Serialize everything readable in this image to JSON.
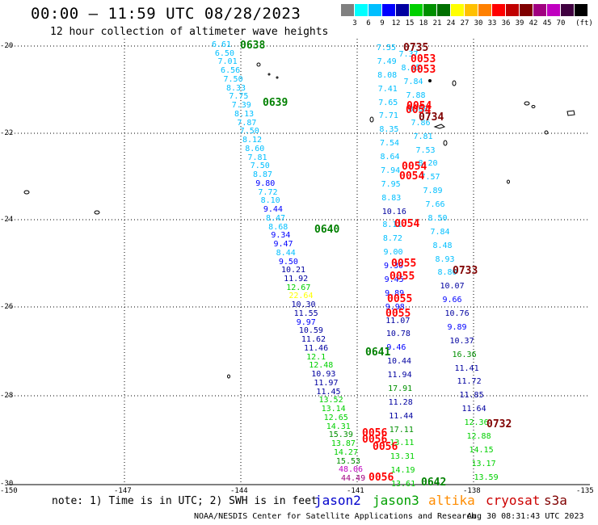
{
  "title": "00:00 – 11:59 UTC 08/28/2023",
  "subtitle": "12 hour collection of altimeter wave heights",
  "scale": {
    "unit": "(ft)",
    "colors": [
      "#808080",
      "#00ffff",
      "#00bfff",
      "#0000ff",
      "#0000a0",
      "#00d000",
      "#009000",
      "#007000",
      "#ffff00",
      "#ffc000",
      "#ff8000",
      "#ff0000",
      "#c00000",
      "#800000",
      "#a00080",
      "#c000c0",
      "#400040",
      "#000000"
    ],
    "labels": [
      "3",
      "6",
      "9",
      "12",
      "15",
      "18",
      "21",
      "24",
      "27",
      "30",
      "33",
      "36",
      "39",
      "42",
      "45",
      "70"
    ]
  },
  "axes": {
    "lat_labels": [
      "-20",
      "-22",
      "-24",
      "-26",
      "-28",
      "-30"
    ],
    "lon_labels": [
      "-150",
      "-147",
      "-144",
      "-141",
      "-138",
      "-135"
    ]
  },
  "note": "note: 1) Time is in UTC; 2) SWH is in feet",
  "satellites": [
    {
      "name": "jason2",
      "color": "#0000cc"
    },
    {
      "name": "jason3",
      "color": "#00a000"
    },
    {
      "name": "altika",
      "color": "#ff8c00"
    },
    {
      "name": "cryosat",
      "color": "#cc0000"
    },
    {
      "name": "s3a",
      "color": "#800000"
    }
  ],
  "credit": "NOAA/NESDIS Center for Satellite Applications and Research",
  "timestamp": "Aug 30 08:31:43 UTC 2023",
  "passes": [
    {
      "text": "0638",
      "color": "#008000"
    },
    {
      "text": "0639",
      "color": "#008000"
    },
    {
      "text": "0640",
      "color": "#008000"
    },
    {
      "text": "0641",
      "color": "#008000"
    },
    {
      "text": "0642",
      "color": "#008000"
    },
    {
      "text": "0735",
      "color": "#800000"
    },
    {
      "text": "0734",
      "color": "#800000"
    },
    {
      "text": "0733",
      "color": "#800000"
    },
    {
      "text": "0732",
      "color": "#800000"
    },
    {
      "text": "0053",
      "color": "#ff0000"
    },
    {
      "text": "0053",
      "color": "#ff0000"
    },
    {
      "text": "0054",
      "color": "#ff0000"
    },
    {
      "text": "0054",
      "color": "#ff0000"
    },
    {
      "text": "0054",
      "color": "#ff0000"
    },
    {
      "text": "0054",
      "color": "#ff0000"
    },
    {
      "text": "0054",
      "color": "#ff0000"
    },
    {
      "text": "0055",
      "color": "#ff0000"
    },
    {
      "text": "0055",
      "color": "#ff0000"
    },
    {
      "text": "0055",
      "color": "#ff0000"
    },
    {
      "text": "0055",
      "color": "#ff0000"
    },
    {
      "text": "0056",
      "color": "#ff0000"
    },
    {
      "text": "0056",
      "color": "#ff0000"
    },
    {
      "text": "0056",
      "color": "#ff0000"
    },
    {
      "text": "0056",
      "color": "#ff0000"
    }
  ],
  "track_a": [
    {
      "v": "6.61",
      "c": "#00bfff"
    },
    {
      "v": "6.50",
      "c": "#00bfff"
    },
    {
      "v": "7.01",
      "c": "#00bfff"
    },
    {
      "v": "6.56",
      "c": "#00bfff"
    },
    {
      "v": "7.50",
      "c": "#00bfff"
    },
    {
      "v": "8.33",
      "c": "#00bfff"
    },
    {
      "v": "7.75",
      "c": "#00bfff"
    },
    {
      "v": "7.39",
      "c": "#00bfff"
    },
    {
      "v": "8.13",
      "c": "#00bfff"
    },
    {
      "v": "7.87",
      "c": "#00bfff"
    },
    {
      "v": "7.50",
      "c": "#00bfff"
    },
    {
      "v": "8.12",
      "c": "#00bfff"
    },
    {
      "v": "8.60",
      "c": "#00bfff"
    },
    {
      "v": "7.81",
      "c": "#00bfff"
    },
    {
      "v": "7.50",
      "c": "#00bfff"
    },
    {
      "v": "8.87",
      "c": "#00bfff"
    },
    {
      "v": "9.80",
      "c": "#0000ff"
    },
    {
      "v": "7.72",
      "c": "#00bfff"
    },
    {
      "v": "8.10",
      "c": "#00bfff"
    },
    {
      "v": "9.44",
      "c": "#0000ff"
    },
    {
      "v": "8.47",
      "c": "#00bfff"
    },
    {
      "v": "8.68",
      "c": "#00bfff"
    },
    {
      "v": "9.34",
      "c": "#0000ff"
    },
    {
      "v": "9.47",
      "c": "#0000ff"
    },
    {
      "v": "8.44",
      "c": "#00bfff"
    },
    {
      "v": "9.50",
      "c": "#0000ff"
    },
    {
      "v": "10.21",
      "c": "#0000a0"
    },
    {
      "v": "11.92",
      "c": "#0000a0"
    },
    {
      "v": "12.67",
      "c": "#00d000"
    },
    {
      "v": "22.64",
      "c": "#ffff00"
    },
    {
      "v": "10.30",
      "c": "#0000a0"
    },
    {
      "v": "11.55",
      "c": "#0000a0"
    },
    {
      "v": "9.97",
      "c": "#0000ff"
    },
    {
      "v": "10.59",
      "c": "#0000a0"
    },
    {
      "v": "11.62",
      "c": "#0000a0"
    },
    {
      "v": "11.46",
      "c": "#0000a0"
    },
    {
      "v": "12.1",
      "c": "#00d000"
    },
    {
      "v": "12.48",
      "c": "#00d000"
    },
    {
      "v": "10.93",
      "c": "#0000a0"
    },
    {
      "v": "11.97",
      "c": "#0000a0"
    },
    {
      "v": "11.45",
      "c": "#0000a0"
    },
    {
      "v": "13.52",
      "c": "#00d000"
    },
    {
      "v": "13.14",
      "c": "#00d000"
    },
    {
      "v": "12.65",
      "c": "#00d000"
    },
    {
      "v": "14.31",
      "c": "#00d000"
    },
    {
      "v": "15.39",
      "c": "#009000"
    },
    {
      "v": "13.87",
      "c": "#00d000"
    },
    {
      "v": "14.27",
      "c": "#00d000"
    },
    {
      "v": "15.53",
      "c": "#009000"
    },
    {
      "v": "48.06",
      "c": "#c000c0"
    },
    {
      "v": "44.49",
      "c": "#a00080"
    }
  ],
  "track_b": [
    {
      "v": "7.55",
      "c": "#00bfff"
    },
    {
      "v": "7.37",
      "c": "#00bfff"
    },
    {
      "v": "7.49",
      "c": "#00bfff"
    },
    {
      "v": "8.05",
      "c": "#00bfff"
    },
    {
      "v": "8.08",
      "c": "#00bfff"
    },
    {
      "v": "7.84",
      "c": "#00bfff"
    },
    {
      "v": "7.41",
      "c": "#00bfff"
    },
    {
      "v": "7.88",
      "c": "#00bfff"
    },
    {
      "v": "7.65",
      "c": "#00bfff"
    },
    {
      "v": "8.08",
      "c": "#00bfff"
    },
    {
      "v": "7.71",
      "c": "#00bfff"
    },
    {
      "v": "7.86",
      "c": "#00bfff"
    },
    {
      "v": "8.35",
      "c": "#00bfff"
    },
    {
      "v": "7.81",
      "c": "#00bfff"
    },
    {
      "v": "7.54",
      "c": "#00bfff"
    },
    {
      "v": "7.53",
      "c": "#00bfff"
    },
    {
      "v": "8.64",
      "c": "#00bfff"
    },
    {
      "v": "8.20",
      "c": "#00bfff"
    },
    {
      "v": "7.94",
      "c": "#00bfff"
    },
    {
      "v": "7.57",
      "c": "#00bfff"
    },
    {
      "v": "7.95",
      "c": "#00bfff"
    },
    {
      "v": "7.89",
      "c": "#00bfff"
    },
    {
      "v": "8.83",
      "c": "#00bfff"
    },
    {
      "v": "7.66",
      "c": "#00bfff"
    },
    {
      "v": "10.16",
      "c": "#0000a0"
    },
    {
      "v": "8.50",
      "c": "#00bfff"
    },
    {
      "v": "8.11",
      "c": "#00bfff"
    },
    {
      "v": "7.84",
      "c": "#00bfff"
    },
    {
      "v": "8.72",
      "c": "#00bfff"
    },
    {
      "v": "8.48",
      "c": "#00bfff"
    },
    {
      "v": "9.00",
      "c": "#00bfff"
    },
    {
      "v": "8.93",
      "c": "#00bfff"
    },
    {
      "v": "9.30",
      "c": "#0000ff"
    },
    {
      "v": "8.80",
      "c": "#00bfff"
    },
    {
      "v": "9.45",
      "c": "#0000ff"
    },
    {
      "v": "10.07",
      "c": "#0000a0"
    },
    {
      "v": "9.89",
      "c": "#0000ff"
    },
    {
      "v": "9.66",
      "c": "#0000ff"
    },
    {
      "v": "9.98",
      "c": "#0000ff"
    },
    {
      "v": "10.76",
      "c": "#0000a0"
    },
    {
      "v": "11.07",
      "c": "#0000a0"
    },
    {
      "v": "9.89",
      "c": "#0000ff"
    },
    {
      "v": "10.78",
      "c": "#0000a0"
    },
    {
      "v": "10.37",
      "c": "#0000a0"
    },
    {
      "v": "9.46",
      "c": "#0000ff"
    },
    {
      "v": "16.36",
      "c": "#009000"
    },
    {
      "v": "10.44",
      "c": "#0000a0"
    },
    {
      "v": "11.41",
      "c": "#0000a0"
    },
    {
      "v": "11.94",
      "c": "#0000a0"
    },
    {
      "v": "11.72",
      "c": "#0000a0"
    },
    {
      "v": "17.91",
      "c": "#009000"
    },
    {
      "v": "11.85",
      "c": "#0000a0"
    },
    {
      "v": "11.28",
      "c": "#0000a0"
    },
    {
      "v": "11.64",
      "c": "#0000a0"
    },
    {
      "v": "11.44",
      "c": "#0000a0"
    },
    {
      "v": "12.36",
      "c": "#00d000"
    },
    {
      "v": "17.11",
      "c": "#009000"
    },
    {
      "v": "12.88",
      "c": "#00d000"
    },
    {
      "v": "13.11",
      "c": "#00d000"
    },
    {
      "v": "14.15",
      "c": "#00d000"
    },
    {
      "v": "13.31",
      "c": "#00d000"
    },
    {
      "v": "13.17",
      "c": "#00d000"
    },
    {
      "v": "14.19",
      "c": "#00d000"
    },
    {
      "v": "13.59",
      "c": "#00d000"
    },
    {
      "v": "13.61",
      "c": "#00d000"
    }
  ]
}
